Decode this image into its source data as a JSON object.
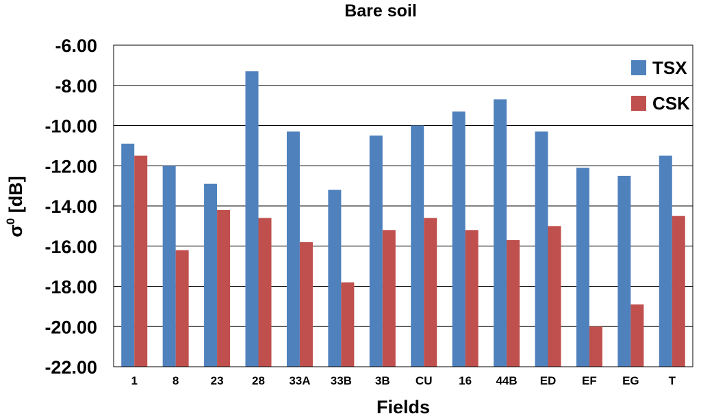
{
  "chart_data": {
    "type": "bar",
    "title": "Bare soil",
    "xlabel": "Fields",
    "ylabel": "σ",
    "ylabel_sup": "0",
    "ylabel_suffix": " [dB]",
    "categories": [
      "1",
      "8",
      "23",
      "28",
      "33A",
      "33B",
      "3B",
      "CU",
      "16",
      "44B",
      "ED",
      "EF",
      "EG",
      "T"
    ],
    "series": [
      {
        "name": "TSX",
        "color": "#4f81bd",
        "values": [
          -10.9,
          -12.0,
          -12.9,
          -7.3,
          -10.3,
          -13.2,
          -10.5,
          -10.0,
          -9.3,
          -8.7,
          -10.3,
          -12.1,
          -12.5,
          -11.5
        ]
      },
      {
        "name": "CSK",
        "color": "#c0504d",
        "values": [
          -11.5,
          -16.2,
          -14.2,
          -14.6,
          -15.8,
          -17.8,
          -15.2,
          -14.6,
          -15.2,
          -15.7,
          -15.0,
          -20.0,
          -18.9,
          -14.5
        ]
      }
    ],
    "ylim": [
      -22,
      -6
    ],
    "yticks": [
      "-6.00",
      "-8.00",
      "-10.00",
      "-12.00",
      "-14.00",
      "-16.00",
      "-18.00",
      "-20.00",
      "-22.00"
    ],
    "grid": true,
    "legend_position": "top-right"
  }
}
